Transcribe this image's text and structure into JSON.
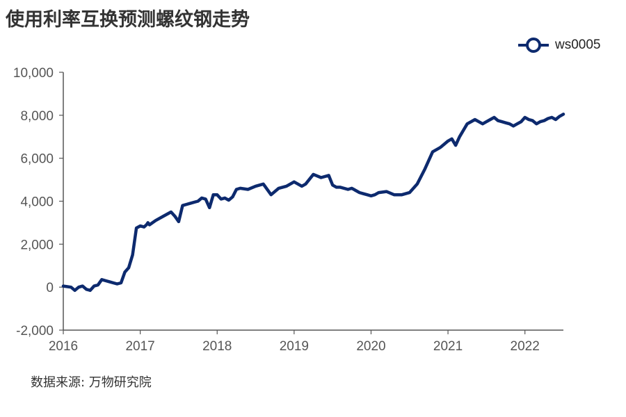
{
  "title": "使用利率互换预测螺纹钢走势",
  "source_note": "数据来源: 万物研究院",
  "colors": {
    "series": "#0d2a6e",
    "axis": "#555555",
    "text": "#333333"
  },
  "chart_data": {
    "type": "line",
    "title": "使用利率互换预测螺纹钢走势",
    "xlabel": "",
    "ylabel": "",
    "x_ticks": [
      "2016",
      "2017",
      "2018",
      "2019",
      "2020",
      "2021",
      "2022"
    ],
    "y_ticks": [
      "-2,000",
      "0",
      "2,000",
      "4,000",
      "6,000",
      "8,000",
      "10,000"
    ],
    "ylim": [
      -2000,
      10000
    ],
    "xlim": [
      2016.0,
      2022.5
    ],
    "grid": false,
    "legend": "top-right",
    "series": [
      {
        "name": "ws0005",
        "x": [
          2016.0,
          2016.1,
          2016.15,
          2016.2,
          2016.25,
          2016.3,
          2016.35,
          2016.4,
          2016.45,
          2016.5,
          2016.55,
          2016.6,
          2016.65,
          2016.7,
          2016.75,
          2016.8,
          2016.85,
          2016.9,
          2016.95,
          2017.0,
          2017.05,
          2017.08,
          2017.1,
          2017.12,
          2017.2,
          2017.3,
          2017.4,
          2017.45,
          2017.5,
          2017.55,
          2017.6,
          2017.65,
          2017.7,
          2017.75,
          2017.8,
          2017.85,
          2017.9,
          2017.95,
          2018.0,
          2018.05,
          2018.1,
          2018.15,
          2018.2,
          2018.25,
          2018.3,
          2018.4,
          2018.5,
          2018.6,
          2018.7,
          2018.8,
          2018.9,
          2019.0,
          2019.05,
          2019.1,
          2019.15,
          2019.25,
          2019.35,
          2019.45,
          2019.5,
          2019.55,
          2019.6,
          2019.7,
          2019.75,
          2019.8,
          2019.85,
          2019.9,
          2019.95,
          2020.0,
          2020.05,
          2020.1,
          2020.2,
          2020.3,
          2020.4,
          2020.5,
          2020.6,
          2020.7,
          2020.8,
          2020.9,
          2021.0,
          2021.05,
          2021.1,
          2021.15,
          2021.2,
          2021.25,
          2021.3,
          2021.35,
          2021.4,
          2021.45,
          2021.5,
          2021.55,
          2021.6,
          2021.65,
          2021.7,
          2021.75,
          2021.8,
          2021.85,
          2021.9,
          2021.95,
          2022.0,
          2022.05,
          2022.1,
          2022.15,
          2022.2,
          2022.25,
          2022.3,
          2022.35,
          2022.4,
          2022.45,
          2022.5
        ],
        "y": [
          50,
          0,
          -150,
          0,
          50,
          -100,
          -150,
          50,
          100,
          350,
          300,
          250,
          200,
          150,
          200,
          700,
          900,
          1500,
          2750,
          2850,
          2800,
          2900,
          3000,
          2900,
          3100,
          3300,
          3500,
          3300,
          3050,
          3800,
          3850,
          3900,
          3950,
          4000,
          4150,
          4100,
          3700,
          4300,
          4300,
          4100,
          4150,
          4050,
          4200,
          4550,
          4600,
          4550,
          4700,
          4800,
          4300,
          4600,
          4700,
          4900,
          4800,
          4700,
          4800,
          5250,
          5100,
          5200,
          4750,
          4650,
          4650,
          4550,
          4600,
          4500,
          4400,
          4350,
          4300,
          4250,
          4300,
          4400,
          4450,
          4300,
          4300,
          4400,
          4800,
          5500,
          6300,
          6500,
          6800,
          6900,
          6600,
          7000,
          7300,
          7600,
          7700,
          7800,
          7700,
          7600,
          7700,
          7800,
          7900,
          7750,
          7700,
          7650,
          7600,
          7500,
          7600,
          7700,
          7900,
          7800,
          7750,
          7600,
          7700,
          7750,
          7850,
          7900,
          7800,
          7950,
          8050
        ]
      }
    ]
  },
  "legend": {
    "label": "ws0005"
  }
}
